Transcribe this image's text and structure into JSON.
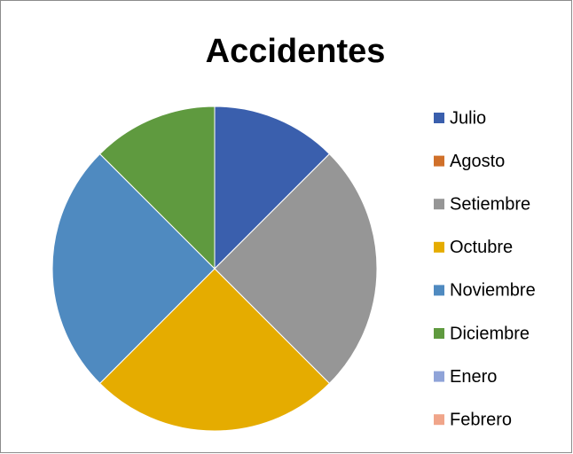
{
  "chart_data": {
    "type": "pie",
    "title": "Accidentes",
    "categories": [
      "Julio",
      "Agosto",
      "Setiembre",
      "Octubre",
      "Noviembre",
      "Diciembre",
      "Enero",
      "Febrero"
    ],
    "values": [
      1,
      0,
      2,
      2,
      2,
      1,
      0,
      0
    ],
    "colors": [
      "#3a5fad",
      "#d0702a",
      "#969696",
      "#e5ac00",
      "#4f8ac0",
      "#5f9a3f",
      "#8fa3d8",
      "#f0a58a"
    ],
    "legend": "right"
  }
}
